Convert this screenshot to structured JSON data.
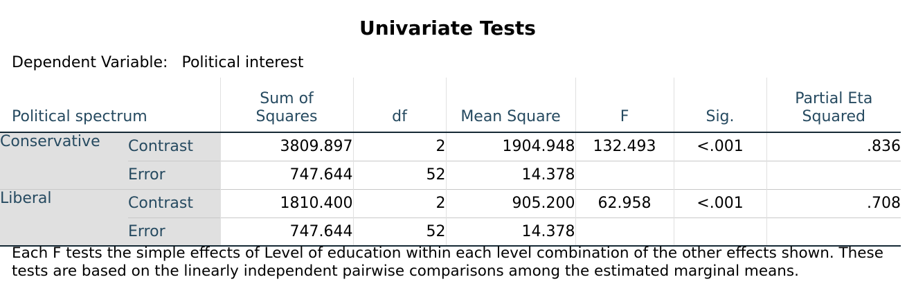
{
  "title": "Univariate Tests",
  "dependent_variable": {
    "label": "Dependent Variable:",
    "value": "Political interest"
  },
  "table": {
    "headers": {
      "spectrum": "Political spectrum",
      "ss_line1": "Sum of",
      "ss_line2": "Squares",
      "df": "df",
      "ms": "Mean Square",
      "f": "F",
      "sig": "Sig.",
      "eta_line1": "Partial Eta",
      "eta_line2": "Squared"
    },
    "groups": [
      {
        "label": "Conservative",
        "rows": [
          {
            "effect": "Contrast",
            "ss": "3809.897",
            "df": "2",
            "ms": "1904.948",
            "f": "132.493",
            "sig": "<.001",
            "eta": ".836"
          },
          {
            "effect": "Error",
            "ss": "747.644",
            "df": "52",
            "ms": "14.378",
            "f": "",
            "sig": "",
            "eta": ""
          }
        ]
      },
      {
        "label": "Liberal",
        "rows": [
          {
            "effect": "Contrast",
            "ss": "1810.400",
            "df": "2",
            "ms": "905.200",
            "f": "62.958",
            "sig": "<.001",
            "eta": ".708"
          },
          {
            "effect": "Error",
            "ss": "747.644",
            "df": "52",
            "ms": "14.378",
            "f": "",
            "sig": "",
            "eta": ""
          }
        ]
      }
    ]
  },
  "footnote": "Each F tests the simple effects of Level of education within each level combination of the other effects shown. These tests are based on the linearly independent pairwise comparisons among the estimated marginal means."
}
